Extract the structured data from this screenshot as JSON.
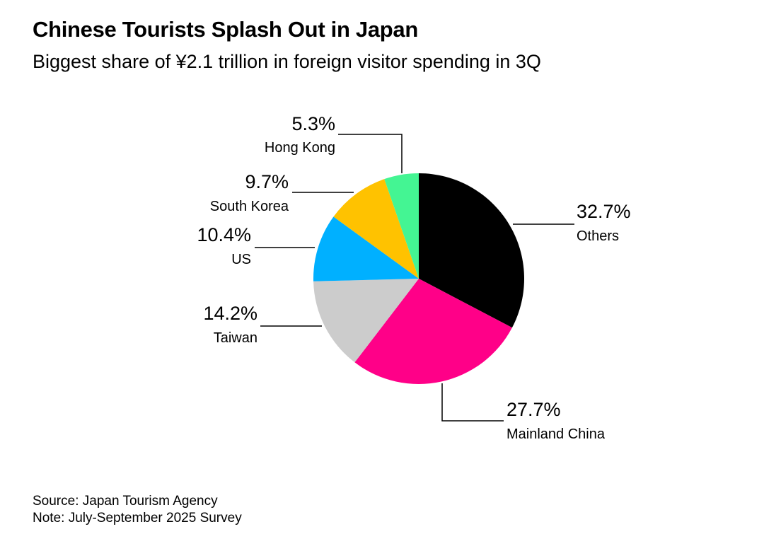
{
  "title": "Chinese Tourists Splash Out in Japan",
  "subtitle": "Biggest share of ¥2.1 trillion in foreign visitor spending in 3Q",
  "source": "Source: Japan Tourism Agency",
  "note": "Note: July-September 2025 Survey",
  "chart_data": {
    "type": "pie",
    "title": "Chinese Tourists Splash Out in Japan",
    "unit": "%",
    "start": "12 o'clock, clockwise",
    "slices": [
      {
        "label": "Others",
        "value": 32.7,
        "display": "32.7%",
        "color": "#000000"
      },
      {
        "label": "Mainland China",
        "value": 27.7,
        "display": "27.7%",
        "color": "#ff0088"
      },
      {
        "label": "Taiwan",
        "value": 14.2,
        "display": "14.2%",
        "color": "#cccccc"
      },
      {
        "label": "US",
        "value": 10.4,
        "display": "10.4%",
        "color": "#00b0ff"
      },
      {
        "label": "South Korea",
        "value": 9.7,
        "display": "9.7%",
        "color": "#ffc200"
      },
      {
        "label": "Hong Kong",
        "value": 5.3,
        "display": "5.3%",
        "color": "#44f593"
      }
    ]
  }
}
